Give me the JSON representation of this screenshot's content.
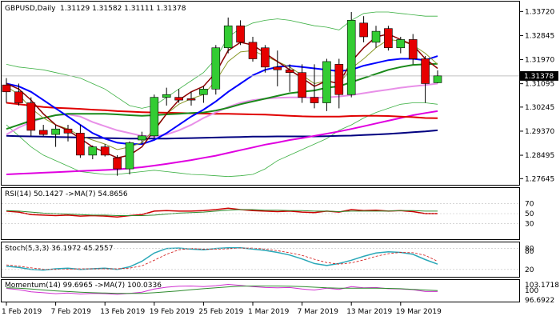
{
  "chart_data": [
    {
      "type": "candlestick",
      "title": "GBPUSD,Daily",
      "ohlc_header": "1.31129 1.31582 1.31111 1.31378",
      "current_price": "1.31378",
      "x_tick_labels": [
        "1 Feb 2019",
        "7 Feb 2019",
        "13 Feb 2019",
        "19 Feb 2019",
        "25 Feb 2019",
        "1 Mar 2019",
        "7 Mar 2019",
        "13 Mar 2019",
        "19 Mar 2019"
      ],
      "y_tick_labels": [
        "1.33720",
        "1.32845",
        "1.31970",
        "1.31095",
        "1.30245",
        "1.29370",
        "1.28495",
        "1.27645"
      ],
      "ylim": [
        1.2745,
        1.3405
      ],
      "candles": [
        {
          "o": 1.3105,
          "h": 1.313,
          "l": 1.304,
          "c": 1.308
        },
        {
          "o": 1.308,
          "h": 1.311,
          "l": 1.303,
          "c": 1.304
        },
        {
          "o": 1.304,
          "h": 1.306,
          "l": 1.292,
          "c": 1.294
        },
        {
          "o": 1.294,
          "h": 1.296,
          "l": 1.292,
          "c": 1.2925
        },
        {
          "o": 1.2925,
          "h": 1.296,
          "l": 1.288,
          "c": 1.2945
        },
        {
          "o": 1.2945,
          "h": 1.296,
          "l": 1.29,
          "c": 1.293
        },
        {
          "o": 1.293,
          "h": 1.296,
          "l": 1.284,
          "c": 1.285
        },
        {
          "o": 1.285,
          "h": 1.2885,
          "l": 1.2835,
          "c": 1.288
        },
        {
          "o": 1.288,
          "h": 1.289,
          "l": 1.2845,
          "c": 1.285
        },
        {
          "o": 1.284,
          "h": 1.285,
          "l": 1.2775,
          "c": 1.28
        },
        {
          "o": 1.28,
          "h": 1.29,
          "l": 1.278,
          "c": 1.2895
        },
        {
          "o": 1.2905,
          "h": 1.2935,
          "l": 1.289,
          "c": 1.292
        },
        {
          "o": 1.292,
          "h": 1.307,
          "l": 1.291,
          "c": 1.306
        },
        {
          "o": 1.306,
          "h": 1.3095,
          "l": 1.303,
          "c": 1.307
        },
        {
          "o": 1.306,
          "h": 1.309,
          "l": 1.304,
          "c": 1.305
        },
        {
          "o": 1.3055,
          "h": 1.308,
          "l": 1.303,
          "c": 1.305
        },
        {
          "o": 1.307,
          "h": 1.31,
          "l": 1.304,
          "c": 1.309
        },
        {
          "o": 1.309,
          "h": 1.325,
          "l": 1.307,
          "c": 1.324
        },
        {
          "o": 1.324,
          "h": 1.335,
          "l": 1.322,
          "c": 1.332
        },
        {
          "o": 1.332,
          "h": 1.334,
          "l": 1.325,
          "c": 1.326
        },
        {
          "o": 1.326,
          "h": 1.328,
          "l": 1.319,
          "c": 1.32
        },
        {
          "o": 1.324,
          "h": 1.325,
          "l": 1.315,
          "c": 1.317
        },
        {
          "o": 1.317,
          "h": 1.323,
          "l": 1.31,
          "c": 1.316
        },
        {
          "o": 1.316,
          "h": 1.318,
          "l": 1.308,
          "c": 1.315
        },
        {
          "o": 1.315,
          "h": 1.318,
          "l": 1.304,
          "c": 1.306
        },
        {
          "o": 1.306,
          "h": 1.318,
          "l": 1.302,
          "c": 1.304
        },
        {
          "o": 1.304,
          "h": 1.32,
          "l": 1.301,
          "c": 1.319
        },
        {
          "o": 1.318,
          "h": 1.32,
          "l": 1.302,
          "c": 1.307
        },
        {
          "o": 1.307,
          "h": 1.337,
          "l": 1.306,
          "c": 1.334
        },
        {
          "o": 1.333,
          "h": 1.3355,
          "l": 1.326,
          "c": 1.328
        },
        {
          "o": 1.326,
          "h": 1.332,
          "l": 1.324,
          "c": 1.33
        },
        {
          "o": 1.331,
          "h": 1.332,
          "l": 1.323,
          "c": 1.324
        },
        {
          "o": 1.324,
          "h": 1.328,
          "l": 1.322,
          "c": 1.327
        },
        {
          "o": 1.327,
          "h": 1.329,
          "l": 1.318,
          "c": 1.32
        },
        {
          "o": 1.32,
          "h": 1.321,
          "l": 1.304,
          "c": 1.311
        },
        {
          "o": 1.3113,
          "h": 1.3158,
          "l": 1.3111,
          "c": 1.3138
        }
      ],
      "indicators": {
        "ma_olive": [
          1.31,
          1.307,
          1.302,
          1.2985,
          1.296,
          1.2945,
          1.292,
          1.2905,
          1.289,
          1.287,
          1.288,
          1.2895,
          1.2945,
          1.3,
          1.3035,
          1.3055,
          1.307,
          1.312,
          1.319,
          1.3225,
          1.323,
          1.321,
          1.319,
          1.317,
          1.314,
          1.311,
          1.312,
          1.311,
          1.3165,
          1.32,
          1.324,
          1.327,
          1.3265,
          1.325,
          1.322,
          1.318
        ],
        "ma_darkred": [
          1.311,
          1.309,
          1.305,
          1.3,
          1.296,
          1.294,
          1.291,
          1.288,
          1.286,
          1.284,
          1.285,
          1.288,
          1.294,
          1.3,
          1.305,
          1.308,
          1.31,
          1.315,
          1.323,
          1.326,
          1.325,
          1.322,
          1.319,
          1.316,
          1.313,
          1.31,
          1.312,
          1.311,
          1.319,
          1.324,
          1.328,
          1.329,
          1.327,
          1.325,
          1.32,
          1.3165
        ],
        "ma_blue": [
          1.311,
          1.31,
          1.308,
          1.305,
          1.302,
          1.299,
          1.296,
          1.293,
          1.291,
          1.2895,
          1.289,
          1.289,
          1.2905,
          1.293,
          1.296,
          1.299,
          1.3015,
          1.3045,
          1.308,
          1.311,
          1.314,
          1.316,
          1.317,
          1.3175,
          1.317,
          1.3165,
          1.316,
          1.3155,
          1.316,
          1.3175,
          1.3185,
          1.3195,
          1.32,
          1.32,
          1.3195,
          1.321
        ],
        "ma_green": [
          1.2945,
          1.296,
          1.2975,
          1.2985,
          1.2995,
          1.3,
          1.3,
          1.3,
          1.3,
          1.2998,
          1.2995,
          1.2993,
          1.2995,
          1.2998,
          1.3,
          1.3003,
          1.3005,
          1.3012,
          1.3022,
          1.3035,
          1.3045,
          1.3055,
          1.3065,
          1.3075,
          1.308,
          1.3085,
          1.3095,
          1.31,
          1.3115,
          1.313,
          1.3145,
          1.316,
          1.317,
          1.3178,
          1.318,
          1.3182
        ],
        "ma_violet": [
          1.2925,
          1.295,
          1.297,
          1.2985,
          1.2995,
          1.2998,
          1.299,
          1.297,
          1.2955,
          1.294,
          1.293,
          1.292,
          1.2918,
          1.2925,
          1.294,
          1.296,
          1.2985,
          1.3005,
          1.3025,
          1.304,
          1.305,
          1.3055,
          1.3058,
          1.306,
          1.306,
          1.3058,
          1.306,
          1.3063,
          1.3068,
          1.3075,
          1.3082,
          1.3088,
          1.3095,
          1.31,
          1.3105,
          1.311
        ],
        "ma_red": [
          1.304,
          1.3035,
          1.303,
          1.3025,
          1.3022,
          1.302,
          1.3018,
          1.3015,
          1.3013,
          1.301,
          1.3008,
          1.3006,
          1.3005,
          1.3004,
          1.3003,
          1.3002,
          1.3001,
          1.3,
          1.3,
          1.2999,
          1.2998,
          1.2997,
          1.2995,
          1.2993,
          1.2991,
          1.299,
          1.299,
          1.299,
          1.2992,
          1.2993,
          1.2993,
          1.2992,
          1.299,
          1.2988,
          1.2985,
          1.2984
        ],
        "ma_magenta": [
          1.278,
          1.2782,
          1.2784,
          1.2786,
          1.2788,
          1.279,
          1.2792,
          1.2794,
          1.2796,
          1.2798,
          1.2802,
          1.2806,
          1.2812,
          1.2818,
          1.2825,
          1.2832,
          1.284,
          1.2848,
          1.2858,
          1.2868,
          1.2878,
          1.2888,
          1.2896,
          1.2905,
          1.2912,
          1.292,
          1.2928,
          1.2936,
          1.2945,
          1.2955,
          1.2965,
          1.2975,
          1.2985,
          1.2995,
          1.3003,
          1.301
        ],
        "ma_navy": [
          1.292,
          1.2919,
          1.2918,
          1.2917,
          1.2916,
          1.2915,
          1.2914,
          1.2913,
          1.2912,
          1.2911,
          1.291,
          1.291,
          1.291,
          1.291,
          1.2911,
          1.2912,
          1.2913,
          1.2914,
          1.2915,
          1.2916,
          1.2917,
          1.2917,
          1.2918,
          1.2918,
          1.2918,
          1.2918,
          1.2919,
          1.292,
          1.2921,
          1.2923,
          1.2925,
          1.2927,
          1.293,
          1.2933,
          1.2936,
          1.294
        ],
        "bb_upper": [
          1.318,
          1.317,
          1.3165,
          1.316,
          1.315,
          1.314,
          1.313,
          1.311,
          1.309,
          1.306,
          1.303,
          1.302,
          1.303,
          1.306,
          1.309,
          1.312,
          1.315,
          1.32,
          1.328,
          1.331,
          1.333,
          1.334,
          1.3345,
          1.334,
          1.333,
          1.332,
          1.3315,
          1.3305,
          1.334,
          1.3365,
          1.337,
          1.337,
          1.3365,
          1.336,
          1.3355,
          1.3355
        ],
        "bb_lower": [
          1.296,
          1.292,
          1.288,
          1.285,
          1.283,
          1.281,
          1.279,
          1.2785,
          1.278,
          1.278,
          1.2785,
          1.279,
          1.2795,
          1.279,
          1.2785,
          1.278,
          1.2778,
          1.2775,
          1.2772,
          1.2775,
          1.278,
          1.28,
          1.283,
          1.285,
          1.287,
          1.289,
          1.291,
          1.294,
          1.296,
          1.2985,
          1.3005,
          1.302,
          1.3035,
          1.304,
          1.304,
          1.3035
        ]
      }
    },
    {
      "type": "line",
      "title": "RSI(14) 50.1427 ->MA(7) 54.8656",
      "y_tick_labels": [
        "70",
        "50",
        "30"
      ],
      "ylim": [
        0,
        100
      ],
      "series": [
        {
          "name": "RSI(14)",
          "values": [
            55,
            53,
            48,
            47,
            46,
            47,
            45,
            46,
            45,
            43,
            46,
            48,
            55,
            56,
            55,
            55,
            56,
            58,
            61,
            58,
            56,
            55,
            54,
            55,
            53,
            52,
            55,
            53,
            58,
            56,
            57,
            55,
            56,
            54,
            50,
            50
          ]
        },
        {
          "name": "MA(7)",
          "values": [
            56,
            55,
            53,
            51,
            50,
            49,
            48,
            47,
            47,
            46,
            46,
            46,
            47,
            49,
            51,
            52,
            53,
            55,
            57,
            58,
            58,
            57,
            57,
            56,
            56,
            55,
            55,
            54,
            55,
            55,
            55,
            55,
            56,
            56,
            55,
            55
          ]
        }
      ]
    },
    {
      "type": "line",
      "title": "Stoch(5,3,3) 36.1972 45.2557",
      "y_tick_labels": [
        "80",
        "80",
        "20"
      ],
      "ylim": [
        0,
        100
      ],
      "series": [
        {
          "name": "Stoch %K",
          "values": [
            30,
            26,
            20,
            18,
            22,
            24,
            20,
            22,
            24,
            20,
            28,
            45,
            70,
            84,
            85,
            82,
            80,
            84,
            86,
            86,
            82,
            78,
            72,
            64,
            52,
            38,
            32,
            38,
            48,
            60,
            70,
            74,
            72,
            66,
            50,
            36
          ]
        },
        {
          "name": "Stoch %D",
          "values": [
            34,
            30,
            25,
            21,
            20,
            21,
            22,
            22,
            22,
            22,
            24,
            31,
            48,
            66,
            80,
            84,
            82,
            82,
            83,
            85,
            85,
            82,
            77,
            71,
            63,
            51,
            41,
            36,
            40,
            49,
            60,
            68,
            72,
            71,
            63,
            45
          ]
        }
      ]
    },
    {
      "type": "line",
      "title": "Momentum(14) 99.6965 ->MA(7) 100.0336",
      "y_tick_labels": [
        "103.1718",
        "100",
        "96.6922"
      ],
      "ylim": [
        96.6922,
        103.1718
      ],
      "series": [
        {
          "name": "Momentum(14)",
          "values": [
            100.7,
            100.3,
            99.6,
            99.3,
            99.0,
            99.2,
            98.9,
            99.1,
            99.0,
            98.8,
            99.1,
            99.5,
            100.5,
            101.1,
            101.4,
            101.5,
            101.3,
            101.6,
            102.0,
            101.7,
            101.3,
            101.0,
            100.9,
            101.0,
            100.5,
            100.2,
            100.8,
            100.4,
            101.3,
            100.9,
            101.0,
            100.6,
            100.5,
            100.3,
            99.7,
            99.7
          ]
        },
        {
          "name": "MA(7)",
          "values": [
            100.9,
            100.8,
            100.5,
            100.2,
            99.9,
            99.7,
            99.5,
            99.3,
            99.2,
            99.1,
            99.1,
            99.1,
            99.3,
            99.6,
            99.9,
            100.3,
            100.6,
            100.9,
            101.2,
            101.4,
            101.5,
            101.5,
            101.5,
            101.4,
            101.3,
            101.1,
            100.9,
            100.8,
            100.8,
            100.8,
            100.8,
            100.7,
            100.6,
            100.4,
            100.2,
            100.0
          ]
        }
      ]
    }
  ]
}
